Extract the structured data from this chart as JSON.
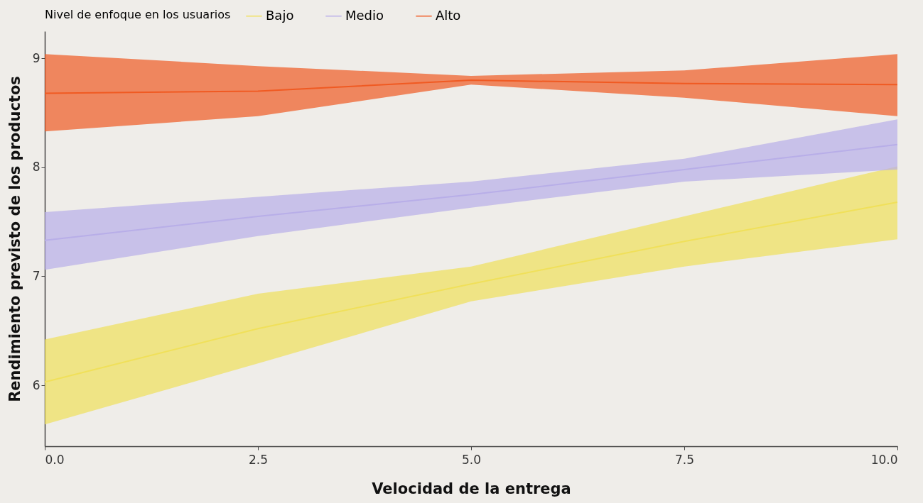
{
  "chart_data": {
    "type": "line",
    "xlabel": "Velocidad de la entrega",
    "ylabel": "Rendimiento previsto de los productos",
    "legend_title": "Nivel de enfoque en los usuarios",
    "legend": "top",
    "grid": false,
    "x": [
      0,
      2.5,
      5,
      7.5,
      10
    ],
    "xlim": [
      0,
      10
    ],
    "xticks": [
      {
        "value": 0,
        "label": "0.0"
      },
      {
        "value": 2.5,
        "label": "2.5"
      },
      {
        "value": 5,
        "label": "5.0"
      },
      {
        "value": 7.5,
        "label": "7.5"
      },
      {
        "value": 10,
        "label": "10.0"
      }
    ],
    "ylim": [
      5.44,
      9.25
    ],
    "yticks": [
      6,
      7,
      8,
      9
    ],
    "series": [
      {
        "name": "Bajo",
        "color": "#f0e05a",
        "values": [
          6.03,
          6.52,
          6.93,
          7.32,
          7.68
        ],
        "lower": [
          5.64,
          6.2,
          6.77,
          7.09,
          7.34
        ],
        "upper": [
          6.42,
          6.84,
          7.09,
          7.55,
          8.01
        ]
      },
      {
        "name": "Medio",
        "color": "#b8aee8",
        "values": [
          7.33,
          7.55,
          7.75,
          7.98,
          8.21
        ],
        "lower": [
          7.06,
          7.37,
          7.63,
          7.87,
          7.98
        ],
        "upper": [
          7.59,
          7.73,
          7.87,
          8.08,
          8.44
        ]
      },
      {
        "name": "Alto",
        "color": "#f05a22",
        "values": [
          8.68,
          8.7,
          8.8,
          8.77,
          8.76
        ],
        "lower": [
          8.33,
          8.47,
          8.76,
          8.64,
          8.47
        ],
        "upper": [
          9.04,
          8.93,
          8.84,
          8.89,
          9.04
        ]
      }
    ]
  }
}
